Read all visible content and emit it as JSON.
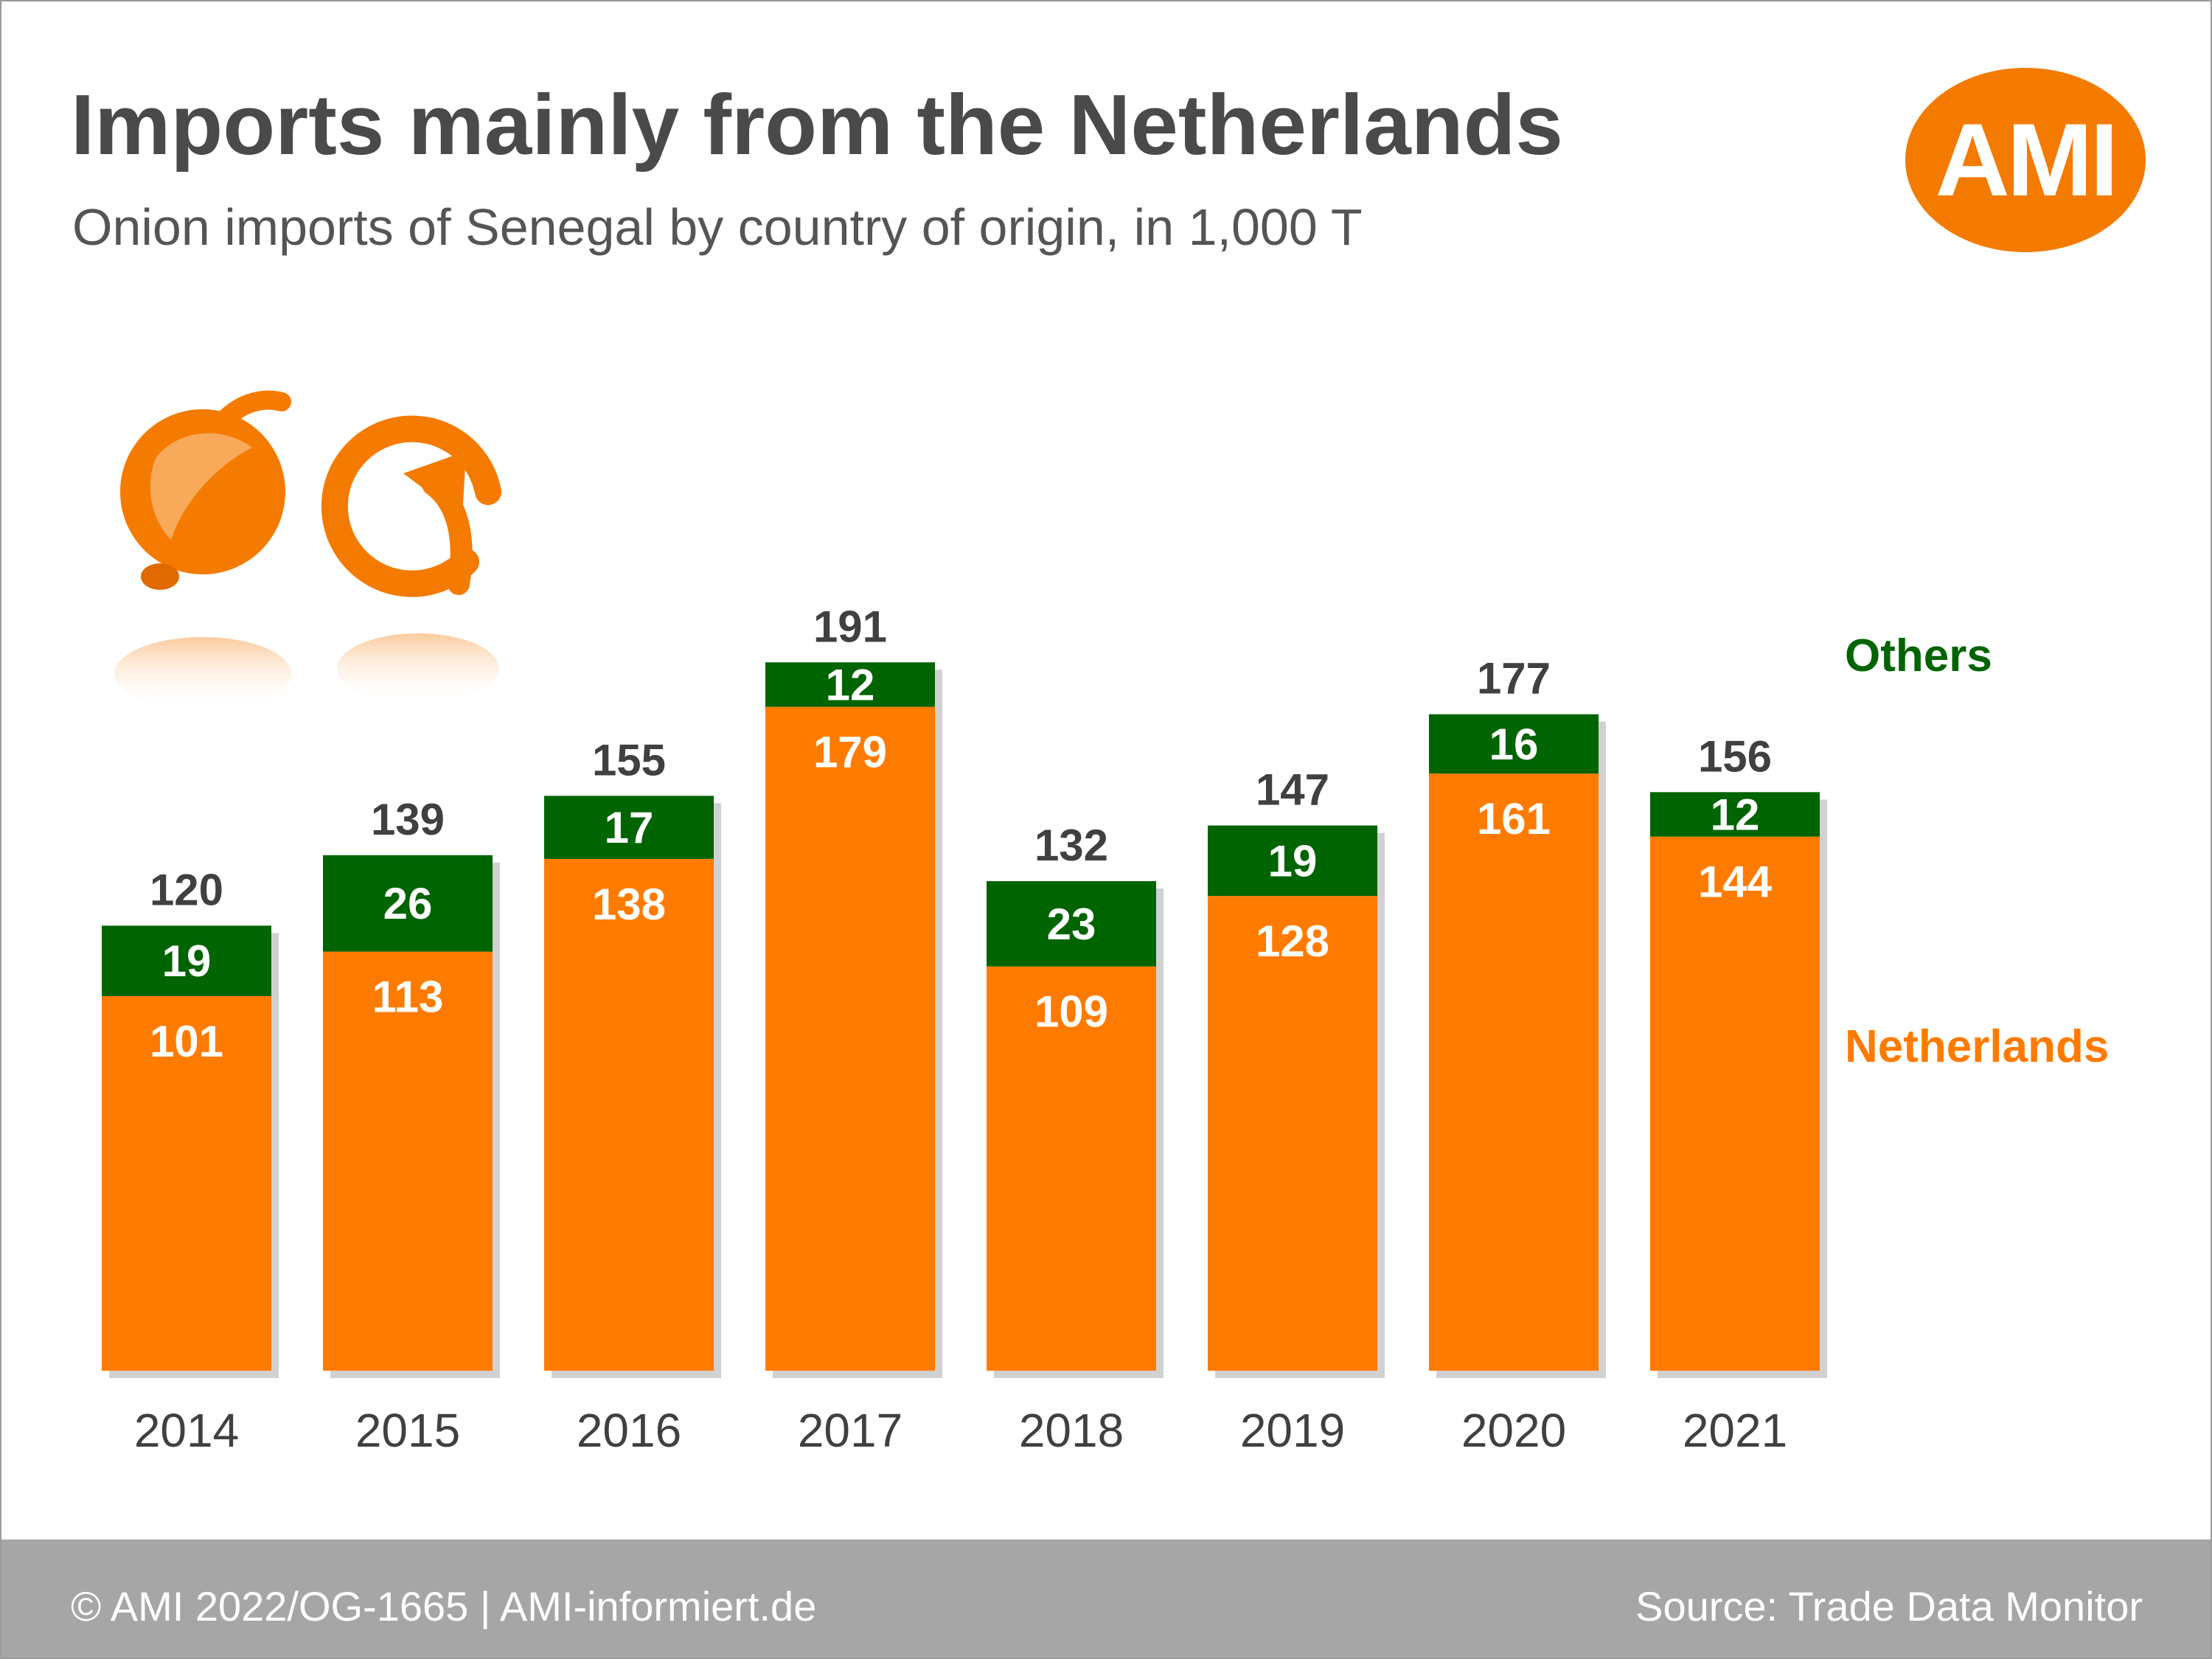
{
  "header": {
    "title": "Imports mainly from the Netherlands",
    "subtitle": "Onion imports of Senegal by country of origin, in 1,000 T",
    "logo_text": "AMI"
  },
  "colors": {
    "netherlands": "#ff7b00",
    "others": "#006400",
    "brand": "#f47b00",
    "total_label": "#404040",
    "footer_bg": "#a6a6a6"
  },
  "icons": [
    "onion-icon",
    "circular-arrow-icon"
  ],
  "chart_data": {
    "type": "bar",
    "stacked": true,
    "categories": [
      "2014",
      "2015",
      "2016",
      "2017",
      "2018",
      "2019",
      "2020",
      "2021"
    ],
    "series": [
      {
        "name": "Netherlands",
        "values": [
          101,
          113,
          138,
          179,
          109,
          128,
          161,
          144
        ]
      },
      {
        "name": "Others",
        "values": [
          19,
          26,
          17,
          12,
          23,
          19,
          16,
          12
        ]
      }
    ],
    "totals": [
      120,
      139,
      155,
      191,
      132,
      147,
      177,
      156
    ],
    "title": "Imports mainly from the Netherlands",
    "subtitle": "Onion imports of Senegal by country of origin, in 1,000 T",
    "xlabel": "",
    "ylabel": "",
    "ylim": [
      0,
      191
    ],
    "grid": false,
    "legend": "right"
  },
  "footer": {
    "copyright": "© AMI 2022/OG-1665 | AMI-informiert.de",
    "source": "Source: Trade Data Monitor"
  }
}
